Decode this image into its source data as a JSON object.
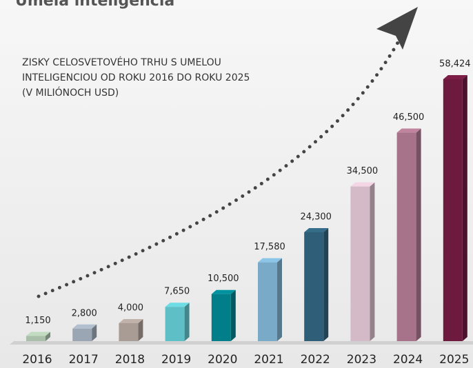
{
  "chart_data": {
    "type": "bar",
    "title": "Umelá inteligencia",
    "subtitle": [
      "ZISKY CELOSVETOVÉHO TRHU S UMELOU",
      "INTELIGENCIOU OD ROKU 2016 DO ROKU 2025",
      "(V MILIÓNOCH USD)"
    ],
    "categories": [
      "2016",
      "2017",
      "2018",
      "2019",
      "2020",
      "2021",
      "2022",
      "2023",
      "2024",
      "2025"
    ],
    "values": [
      1150,
      2800,
      4000,
      7650,
      10500,
      17580,
      24300,
      34500,
      46500,
      58424
    ],
    "value_labels": [
      "1,150",
      "2,800",
      "4,000",
      "7,650",
      "10,500",
      "17,580",
      "24,300",
      "34,500",
      "46,500",
      "58,424"
    ],
    "colors": [
      "#a9bfa9",
      "#9aa6b4",
      "#a89c94",
      "#5fbfc7",
      "#007f8a",
      "#79abc9",
      "#2f5f78",
      "#d4b9c6",
      "#a7738a",
      "#6d1a3e"
    ]
  }
}
